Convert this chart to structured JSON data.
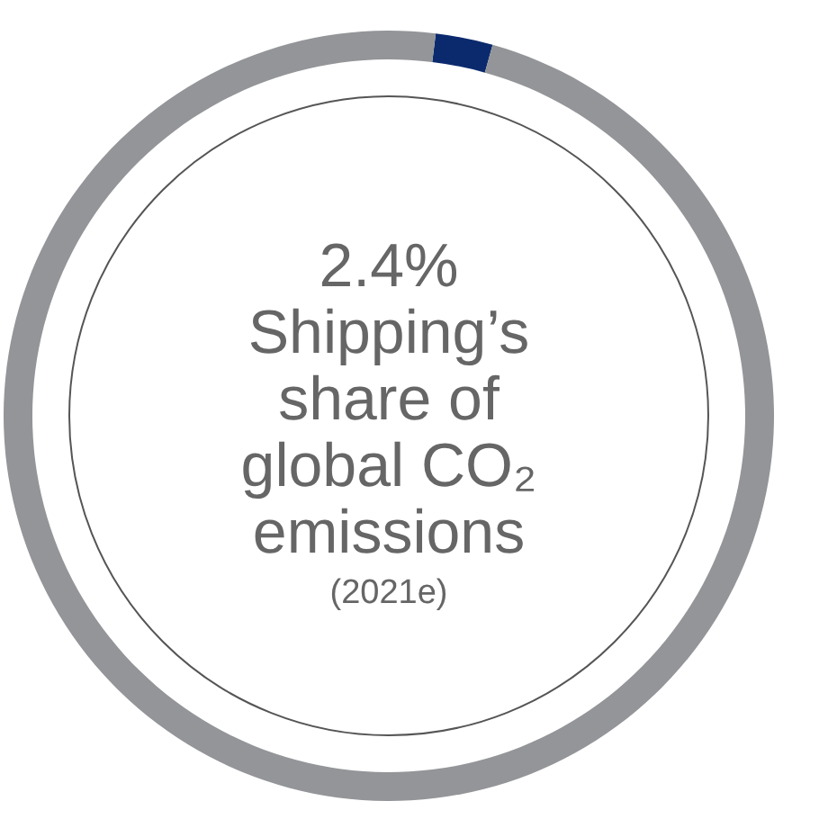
{
  "chart_data": {
    "type": "donut",
    "title": "Shipping’s share of global CO₂ emissions",
    "subtitle": "(2021e)",
    "categories": [
      null,
      null
    ],
    "values": [
      2.4,
      97.6
    ],
    "colors": [
      "#0b2a6e",
      "#939598"
    ],
    "annotations": [
      "2.4%"
    ]
  }
}
